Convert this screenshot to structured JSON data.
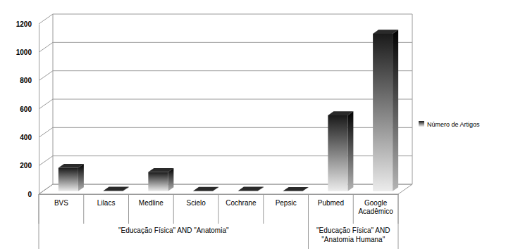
{
  "chart_data": {
    "type": "bar",
    "categories": [
      "BVS",
      "Lilacs",
      "Medline",
      "Scielo",
      "Cochrane",
      "Pepsic",
      "Pubmed",
      "Google Acadêmico"
    ],
    "series": [
      {
        "name": "Número de Artigos",
        "color": "#1a1a1a",
        "values": [
          165,
          3,
          135,
          2,
          3,
          1,
          535,
          1110
        ]
      }
    ],
    "groups": [
      {
        "label": [
          "\"Educação Física\" AND \"Anatomia\""
        ],
        "categories": [
          "BVS",
          "Lilacs",
          "Medline",
          "Scielo",
          "Cochrane",
          "Pepsic"
        ]
      },
      {
        "label": [
          "\"Educação Física\" AND",
          "\"Anatomia Humana\""
        ],
        "categories": [
          "Pubmed",
          "Google Acadêmico"
        ]
      }
    ],
    "ylim": [
      0,
      1200
    ],
    "yticks": [
      0,
      200,
      400,
      600,
      800,
      1000,
      1200
    ],
    "grid": true,
    "legend": "right"
  }
}
